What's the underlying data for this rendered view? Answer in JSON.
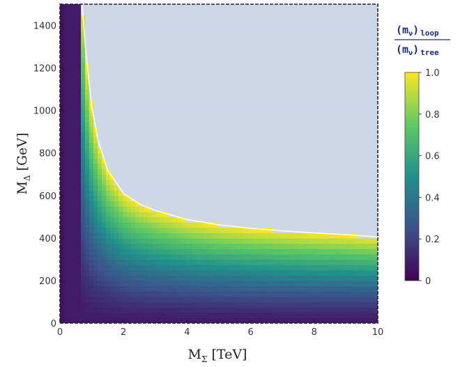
{
  "chart_data": {
    "type": "heatmap",
    "title": "",
    "xlabel": {
      "main": "M",
      "sub": "Σ",
      "unit": "[TeV]"
    },
    "ylabel": {
      "main": "M",
      "sub": "Δ",
      "unit": "[GeV]"
    },
    "xlim": [
      0,
      10
    ],
    "ylim": [
      0,
      1500
    ],
    "x_ticks": [
      0,
      2,
      4,
      6,
      8,
      10
    ],
    "x_tick_labels": [
      "0",
      "2",
      "4",
      "6",
      "8",
      "10"
    ],
    "y_ticks": [
      0,
      200,
      400,
      600,
      800,
      1000,
      1200,
      1400
    ],
    "y_tick_labels": [
      "0",
      "200",
      "400",
      "600",
      "800",
      "1000",
      "1200",
      "1400"
    ],
    "colorbar": {
      "title_numerator": "(m",
      "title_numerator_sub": "ν",
      "title_numerator_close": ")",
      "title_numerator_subscript": "loop",
      "title_denominator": "(m",
      "title_denominator_sub": "ν",
      "title_denominator_close": ")",
      "title_denominator_subscript": "tree",
      "range": [
        0,
        1
      ],
      "ticks": [
        0,
        0.2,
        0.4,
        0.6,
        0.8,
        1.0
      ],
      "tick_labels": [
        "0",
        "0.2",
        "0.4",
        "0.6",
        "0.8",
        "1.0"
      ],
      "colormap": [
        "#440154",
        "#3b528b",
        "#21918c",
        "#5ec962",
        "#fde725"
      ]
    },
    "excluded_region_color": "#cdd7e8",
    "boundary_curve": {
      "x": [
        0.7,
        0.8,
        1.0,
        1.2,
        1.5,
        2.0,
        2.5,
        3.0,
        4.0,
        5.0,
        6.0,
        7.0,
        8.0,
        9.0,
        10.0
      ],
      "y": [
        1500,
        1300,
        1020,
        860,
        720,
        610,
        560,
        530,
        487,
        462,
        446,
        434,
        424,
        416,
        405
      ]
    },
    "frame": "dashed"
  }
}
